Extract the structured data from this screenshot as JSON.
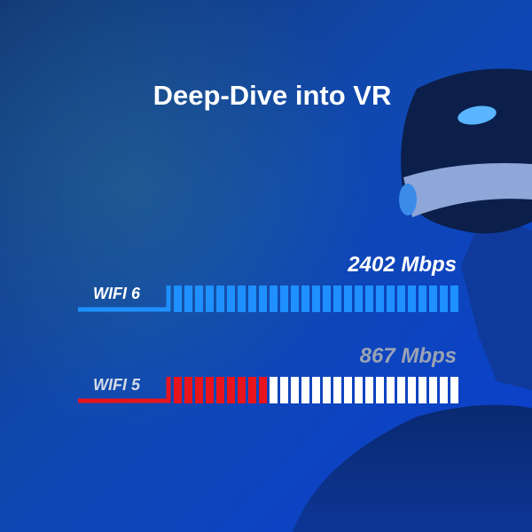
{
  "header": {
    "title": "Deep-Dive into VR"
  },
  "comparison": [
    {
      "label": "WIFI 6",
      "speed": "2402 Mbps"
    },
    {
      "label": "WIFI 5",
      "speed": "867 Mbps"
    }
  ]
}
